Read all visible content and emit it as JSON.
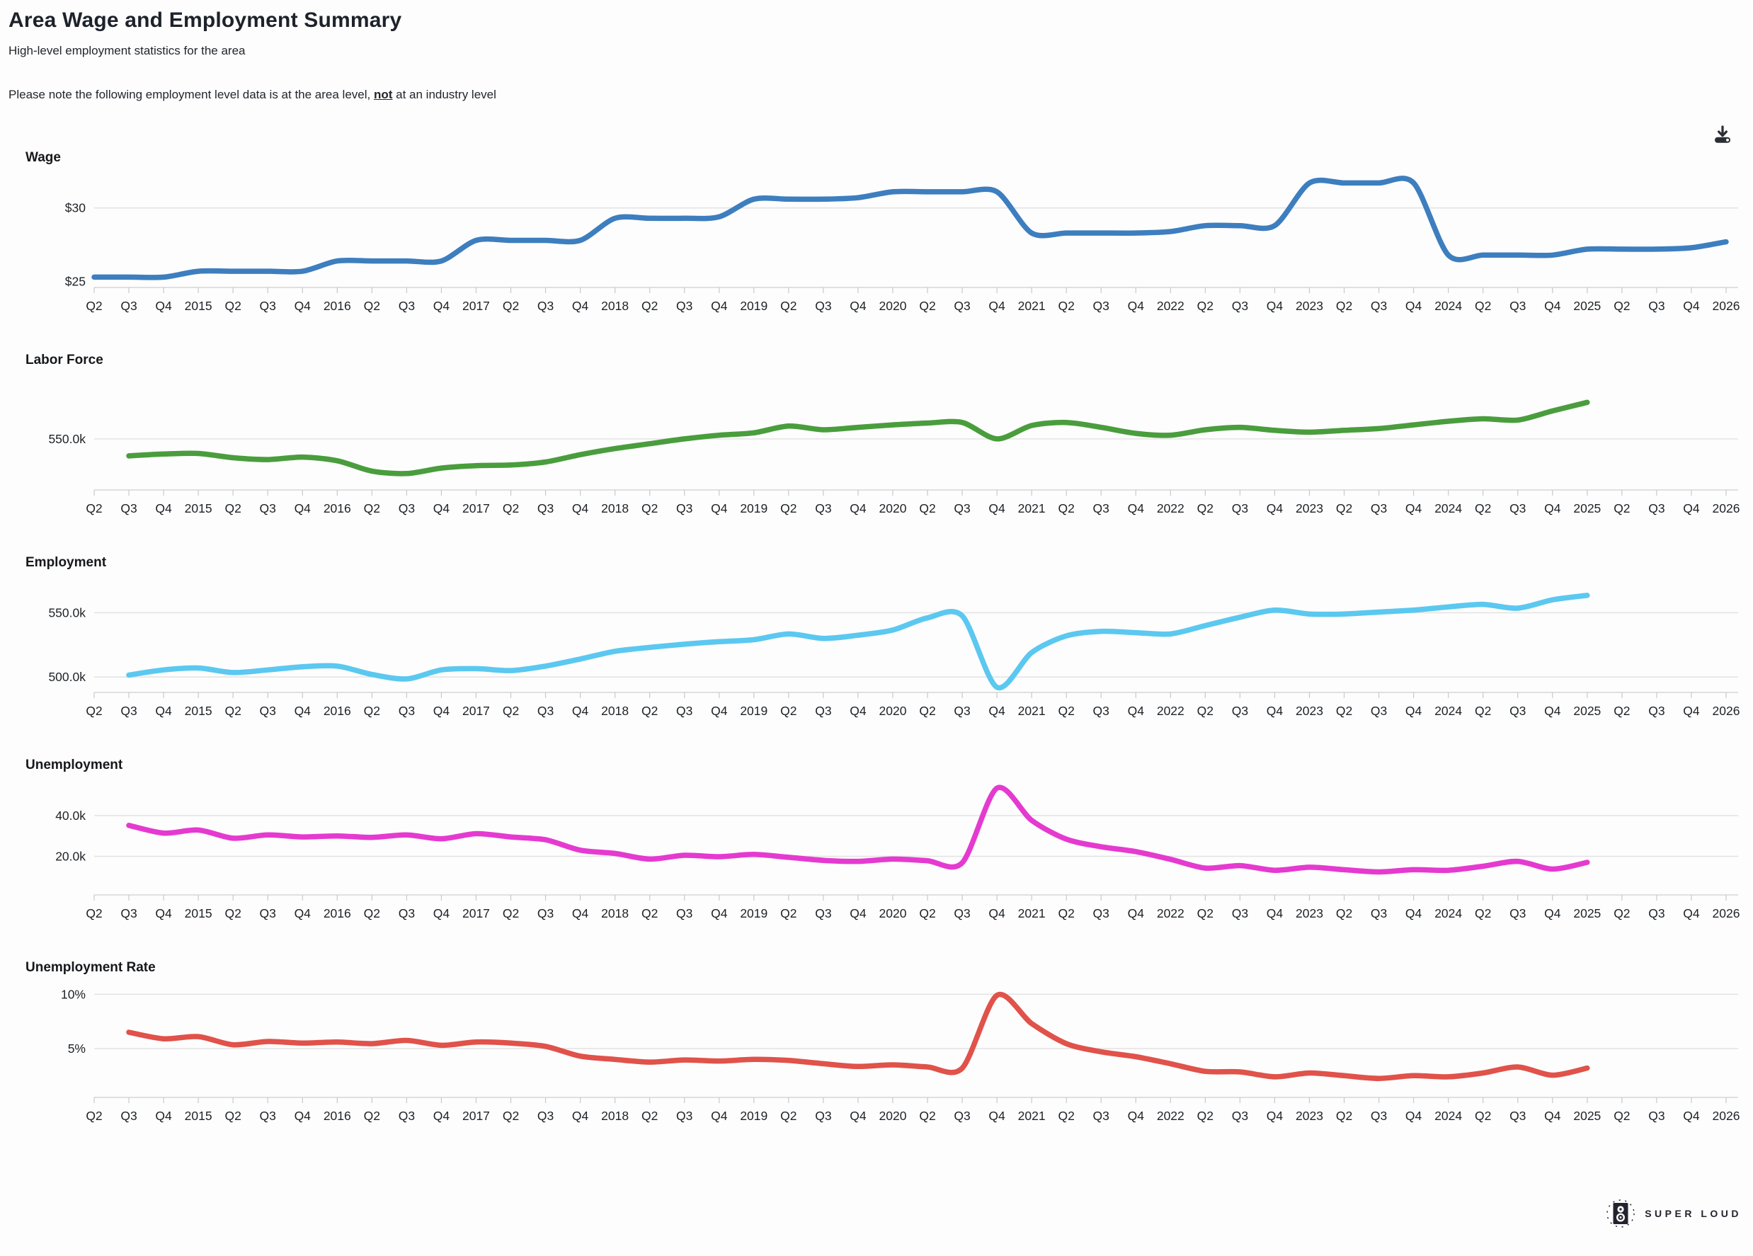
{
  "header": {
    "title": "Area Wage and Employment Summary",
    "subtitle": "High-level employment statistics for the area",
    "note_prefix": "Please note the following employment level data is at the area level, ",
    "note_emphasis": "not",
    "note_suffix": " at an industry level"
  },
  "toolbar": {
    "download_icon": "download-icon"
  },
  "footer": {
    "brand": "SUPER LOUD",
    "logo_icon": "speaker-icon"
  },
  "colors": {
    "wage_line": "#3d7ebf",
    "labor_force_line": "#4a9d3d",
    "employment_line": "#5bc8f0",
    "unemployment_line": "#e53ad0",
    "unemployment_rate_line": "#e0524a",
    "gridline": "#e4e4e4",
    "axis": "#d6d6d6"
  },
  "chart_data": {
    "type": "line",
    "x_tick_labels": [
      "Q2",
      "Q3",
      "Q4",
      "2015",
      "Q2",
      "Q3",
      "Q4",
      "2016",
      "Q2",
      "Q3",
      "Q4",
      "2017",
      "Q2",
      "Q3",
      "Q4",
      "2018",
      "Q2",
      "Q3",
      "Q4",
      "2019",
      "Q2",
      "Q3",
      "Q4",
      "2020",
      "Q2",
      "Q3",
      "Q4",
      "2021",
      "Q2",
      "Q3",
      "Q4",
      "2022",
      "Q2",
      "Q3",
      "Q4",
      "2023",
      "Q2",
      "Q3",
      "Q4",
      "2024",
      "Q2",
      "Q3",
      "Q4",
      "2025",
      "Q2",
      "Q3",
      "Q4",
      "2026"
    ],
    "charts": [
      {
        "title": "Wage",
        "color": "#3d7ebf",
        "ylim": [
          24.6,
          32.2
        ],
        "start_index": 0,
        "y_gridlines": [
          {
            "value": 30,
            "label": "$30",
            "line": true
          },
          {
            "value": 25,
            "label": "$25",
            "line": false
          }
        ],
        "values": [
          25.3,
          25.3,
          25.3,
          25.7,
          25.7,
          25.7,
          25.7,
          26.4,
          26.4,
          26.4,
          26.4,
          27.8,
          27.8,
          27.8,
          27.8,
          29.3,
          29.3,
          29.3,
          29.4,
          30.6,
          30.6,
          30.6,
          30.7,
          31.1,
          31.1,
          31.1,
          31.1,
          28.3,
          28.3,
          28.3,
          28.3,
          28.4,
          28.8,
          28.8,
          28.8,
          31.7,
          31.7,
          31.7,
          31.7,
          26.8,
          26.8,
          26.8,
          26.8,
          27.2,
          27.2,
          27.2,
          27.3,
          27.7
        ]
      },
      {
        "title": "Labor Force",
        "color": "#4a9d3d",
        "ylim": [
          508,
          600
        ],
        "start_index": 1,
        "y_gridlines": [
          {
            "value": 550,
            "label": "550.0k",
            "line": true
          }
        ],
        "values": [
          536,
          537.5,
          538,
          534.5,
          533,
          535,
          532,
          523.5,
          521.5,
          526,
          528,
          528.5,
          531,
          537,
          542,
          546,
          550,
          553,
          555,
          560.5,
          557.5,
          559.5,
          561.5,
          563,
          563.5,
          550,
          561,
          563.5,
          559.5,
          554.5,
          553,
          557.5,
          559.5,
          557,
          555.5,
          557,
          558.5,
          561.5,
          564.5,
          566.5,
          565.5,
          573,
          580
        ]
      },
      {
        "title": "Employment",
        "color": "#5bc8f0",
        "ylim": [
          488,
          575
        ],
        "start_index": 1,
        "y_gridlines": [
          {
            "value": 550,
            "label": "550.0k",
            "line": true
          },
          {
            "value": 500,
            "label": "500.0k",
            "line": true
          }
        ],
        "values": [
          501.5,
          505.5,
          507,
          503.5,
          505.5,
          508,
          508.5,
          502,
          498.5,
          505.5,
          506.5,
          505,
          508.5,
          514,
          520,
          523,
          525.5,
          527.5,
          529,
          533.5,
          530,
          532.5,
          536.5,
          546,
          547.5,
          492,
          519,
          532,
          535.5,
          534.5,
          533.5,
          540,
          546.5,
          552,
          549,
          549,
          550.5,
          552,
          554.5,
          556.5,
          553.5,
          560,
          563.5
        ]
      },
      {
        "title": "Unemployment",
        "color": "#e53ad0",
        "ylim": [
          1,
          56
        ],
        "start_index": 1,
        "y_gridlines": [
          {
            "value": 40,
            "label": "40.0k",
            "line": true
          },
          {
            "value": 20,
            "label": "20.0k",
            "line": true
          }
        ],
        "values": [
          35.2,
          31.4,
          32.9,
          28.9,
          30.5,
          29.5,
          30,
          29.3,
          30.5,
          28.6,
          31.1,
          29.5,
          28.1,
          23,
          21.4,
          18.6,
          20.5,
          19.8,
          20.9,
          19.5,
          18,
          17.5,
          18.6,
          17.8,
          16.8,
          53.5,
          37.7,
          28.4,
          24.7,
          22.3,
          18.5,
          14.2,
          15.4,
          13.1,
          14.6,
          13.4,
          12.3,
          13.4,
          13.1,
          15.1,
          17.5,
          13.7,
          17
        ]
      },
      {
        "title": "Unemployment Rate",
        "color": "#e0524a",
        "ylim": [
          0.5,
          10.8
        ],
        "start_index": 1,
        "y_gridlines": [
          {
            "value": 10,
            "label": "10%",
            "line": true
          },
          {
            "value": 5,
            "label": "5%",
            "line": true
          }
        ],
        "values": [
          6.5,
          5.9,
          6.1,
          5.35,
          5.65,
          5.5,
          5.6,
          5.45,
          5.75,
          5.3,
          5.6,
          5.5,
          5.2,
          4.3,
          4,
          3.75,
          3.95,
          3.85,
          4,
          3.9,
          3.6,
          3.35,
          3.5,
          3.3,
          3.2,
          9.9,
          7.3,
          5.45,
          4.7,
          4.25,
          3.6,
          2.9,
          2.85,
          2.4,
          2.75,
          2.5,
          2.25,
          2.5,
          2.4,
          2.75,
          3.3,
          2.55,
          3.2
        ]
      }
    ]
  }
}
